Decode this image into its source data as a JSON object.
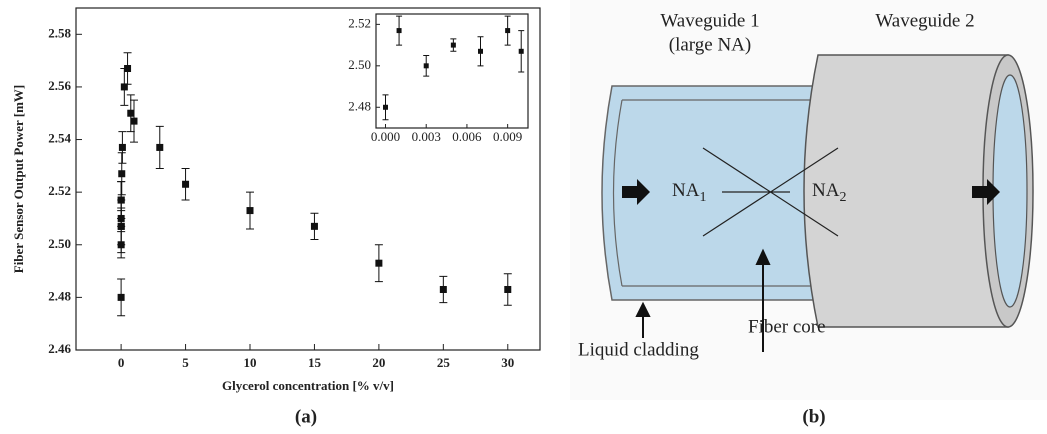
{
  "chart_data": [
    {
      "type": "scatter",
      "x_label": "Glycerol concentration [% v/v]",
      "y_label": "Fiber Sensor Output Power [mW]",
      "x": [
        0,
        0.001,
        0.003,
        0.005,
        0.007,
        0.009,
        0.01,
        0.05,
        0.1,
        0.25,
        0.5,
        0.75,
        1,
        3,
        5,
        10,
        15,
        20,
        25,
        30
      ],
      "series": [
        {
          "color": "#111111",
          "values": [
            2.48,
            2.517,
            2.5,
            2.51,
            2.507,
            2.517,
            2.507,
            2.527,
            2.537,
            2.56,
            2.567,
            2.55,
            2.547,
            2.537,
            2.523,
            2.513,
            2.507,
            2.493,
            2.483,
            2.483
          ],
          "errors": [
            0.007,
            0.007,
            0.005,
            0.003,
            0.007,
            0.007,
            0.01,
            0.008,
            0.006,
            0.007,
            0.006,
            0.007,
            0.008,
            0.008,
            0.006,
            0.007,
            0.005,
            0.007,
            0.005,
            0.006
          ]
        }
      ],
      "xlim": [
        -3.5,
        32.5
      ],
      "xticks": [
        0,
        5,
        10,
        15,
        20,
        25,
        30
      ],
      "ylim": [
        2.46,
        2.59
      ],
      "yticks": [
        2.46,
        2.48,
        {
          "value": 2.5,
          "label": "2.50"
        },
        2.52,
        2.54,
        2.56,
        2.58
      ]
    },
    {
      "type": "scatter",
      "x": [
        0,
        0.001,
        0.003,
        0.005,
        0.007,
        0.009,
        0.01
      ],
      "series": [
        {
          "color": "#111111",
          "values": [
            2.48,
            2.517,
            2.5,
            2.51,
            2.507,
            2.517,
            2.507
          ],
          "errors": [
            0.006,
            0.007,
            0.005,
            0.003,
            0.007,
            0.007,
            0.01
          ]
        }
      ],
      "xlim": [
        -0.0007,
        0.0105
      ],
      "xticks": [
        {
          "value": 0,
          "label": "0.000"
        },
        0.003,
        0.006,
        0.009
      ],
      "ylim": [
        2.47,
        2.525
      ],
      "yticks": [
        2.48,
        {
          "value": 2.5,
          "label": "2.50"
        },
        2.52
      ]
    }
  ],
  "panel_labels": [
    "(a)",
    "(b)"
  ],
  "diagram": {
    "waveguide_1": "Waveguide 1",
    "waveguide_1_note": "(large NA)",
    "waveguide_2": "Waveguide 2",
    "na_1": {
      "text": "NA",
      "subscript": "1"
    },
    "na_2": {
      "text": "NA",
      "subscript": "2"
    },
    "liquid_cladding": "Liquid cladding",
    "fiber_core": "Fiber core"
  }
}
